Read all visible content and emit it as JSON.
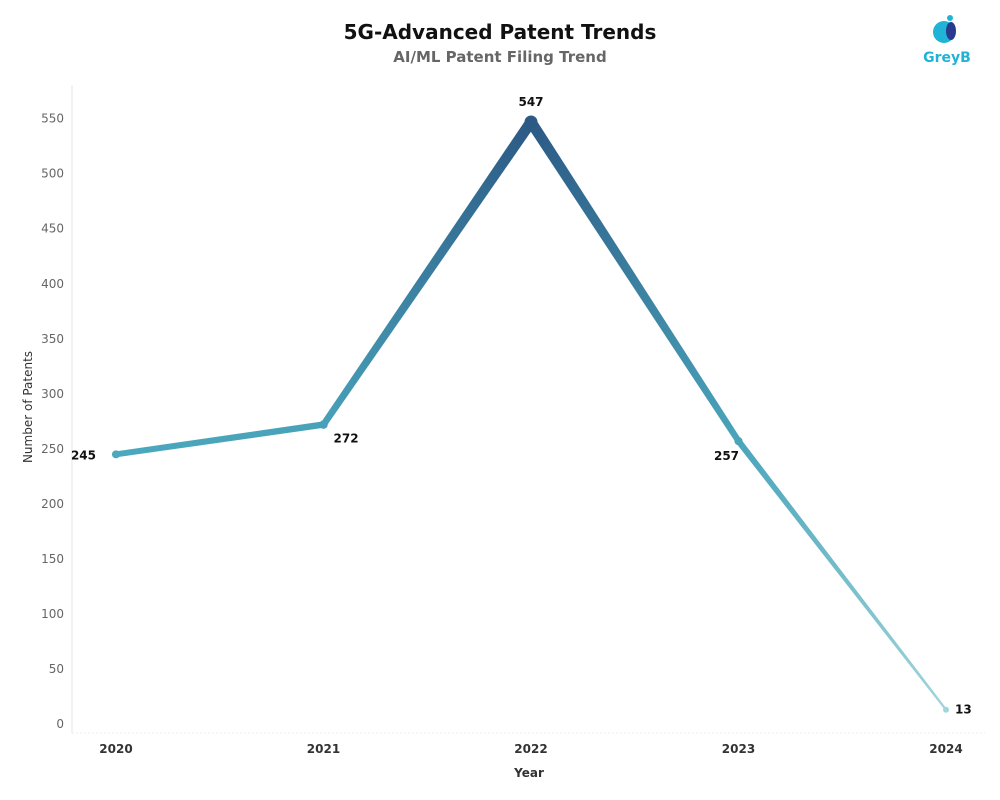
{
  "header": {
    "title": "5G-Advanced Patent Trends",
    "subtitle": "AI/ML Patent Filing Trend",
    "brand": "GreyB"
  },
  "colors": {
    "low": "#a7d8dd",
    "mid": "#4ba8bd",
    "high": "#2c5a85"
  },
  "chart_data": {
    "type": "line",
    "title": "5G-Advanced Patent Trends",
    "subtitle": "AI/ML Patent Filing Trend",
    "xlabel": "Year",
    "ylabel": "Number of Patents",
    "categories": [
      "2020",
      "2021",
      "2022",
      "2023",
      "2024"
    ],
    "values": [
      245,
      272,
      547,
      257,
      13
    ],
    "data_labels": [
      "245",
      "272",
      "547",
      "257",
      "13"
    ],
    "ylim": [
      0,
      580
    ],
    "yticks": [
      0,
      50,
      100,
      150,
      200,
      250,
      300,
      350,
      400,
      450,
      500,
      550
    ],
    "grid": false,
    "legend": "none"
  }
}
